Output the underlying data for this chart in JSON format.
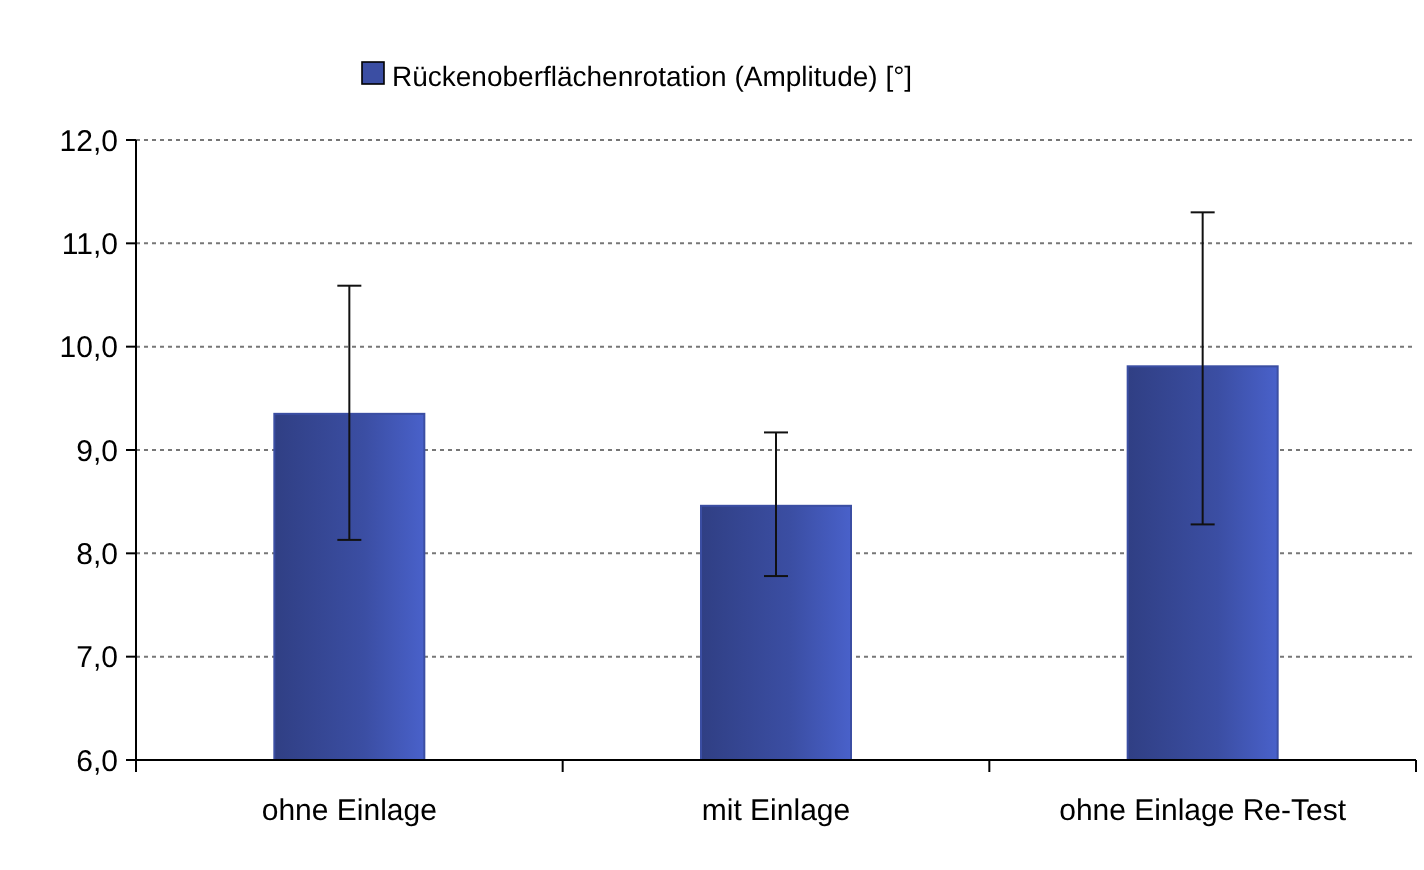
{
  "chart_data": {
    "type": "bar",
    "categories": [
      "ohne Einlage",
      "mit Einlage",
      "ohne Einlage Re-Test"
    ],
    "series": [
      {
        "name": "Rückenoberflächenrotation (Amplitude) [°]",
        "color": "#3b4ea3",
        "values": [
          9.35,
          8.46,
          9.81
        ],
        "errors": [
          [
            8.13,
            10.59
          ],
          [
            7.78,
            9.17
          ],
          [
            8.28,
            11.3
          ]
        ]
      }
    ],
    "ylim": [
      6,
      12
    ],
    "yticks": [
      {
        "value": 6,
        "label": "6,0"
      },
      {
        "value": 7,
        "label": "7,0"
      },
      {
        "value": 8,
        "label": "8,0"
      },
      {
        "value": 9,
        "label": "9,0"
      },
      {
        "value": 10,
        "label": "10,0"
      },
      {
        "value": 11,
        "label": "11,0"
      },
      {
        "value": 12,
        "label": "12,0"
      }
    ],
    "grid": "y",
    "legend": "top"
  }
}
